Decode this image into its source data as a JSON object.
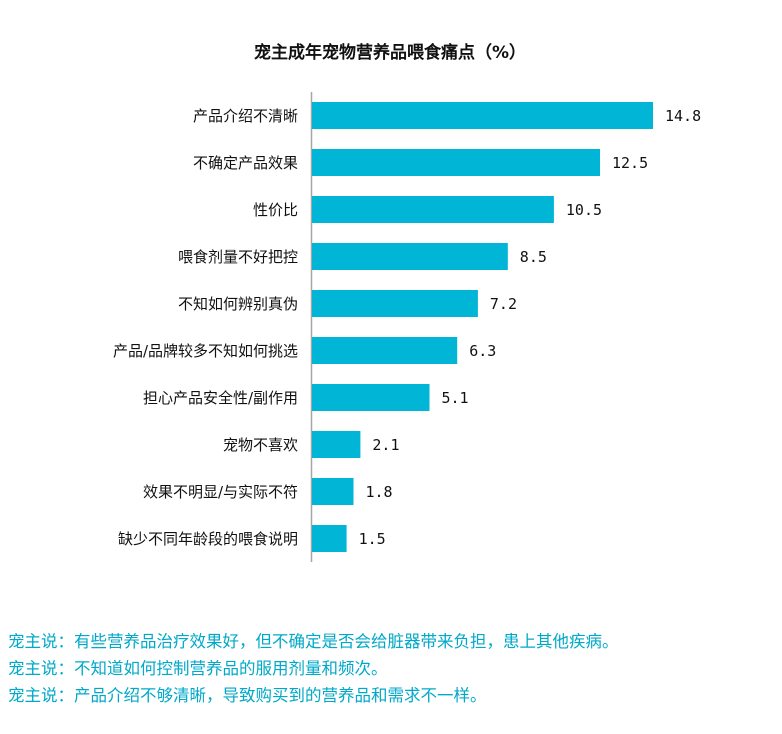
{
  "colors": {
    "bar": "#00b5d6",
    "axis": "#a6a6a6",
    "text": "#111111",
    "quote": "#00a9c9"
  },
  "chart_data": {
    "type": "bar",
    "orientation": "horizontal",
    "title": "宠主成年宠物营养品喂食痛点（%）",
    "categories": [
      "产品介绍不清晰",
      "不确定产品效果",
      "性价比",
      "喂食剂量不好把控",
      "不知如何辨别真伪",
      "产品/品牌较多不知如何挑选",
      "担心产品安全性/副作用",
      "宠物不喜欢",
      "效果不明显/与实际不符",
      "缺少不同年龄段的喂食说明"
    ],
    "values": [
      14.8,
      12.5,
      10.5,
      8.5,
      7.2,
      6.3,
      5.1,
      2.1,
      1.8,
      1.5
    ],
    "value_labels": [
      "14.8",
      "12.5",
      "10.5",
      "8.5",
      "7.2",
      "6.3",
      "5.1",
      "2.1",
      "1.8",
      "1.5"
    ],
    "xlim": [
      0,
      14.8
    ],
    "grid": false,
    "legend": "none"
  },
  "quotes": [
    "宠主说：有些营养品治疗效果好，但不确定是否会给脏器带来负担，患上其他疾病。",
    "宠主说：不知道如何控制营养品的服用剂量和频次。",
    "宠主说：产品介绍不够清晰，导致购买到的营养品和需求不一样。"
  ]
}
